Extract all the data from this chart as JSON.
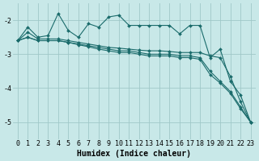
{
  "x": [
    0,
    1,
    2,
    3,
    4,
    5,
    6,
    7,
    8,
    9,
    10,
    11,
    12,
    13,
    14,
    15,
    16,
    17,
    18,
    19,
    20,
    21,
    22,
    23
  ],
  "line_top": [
    -2.6,
    -2.2,
    -2.5,
    -2.45,
    -1.8,
    -2.3,
    -2.5,
    -2.1,
    -2.2,
    -1.9,
    -1.85,
    -2.15,
    -2.15,
    -2.15,
    -2.15,
    -2.15,
    -2.4,
    -2.15,
    -2.15,
    -3.1,
    -2.85,
    -3.8,
    -4.2,
    -5.0
  ],
  "line_upper_band": [
    -2.6,
    -2.35,
    -2.55,
    -2.55,
    -2.55,
    -2.6,
    -2.65,
    -2.7,
    -2.75,
    -2.8,
    -2.82,
    -2.85,
    -2.88,
    -2.9,
    -2.9,
    -2.92,
    -2.95,
    -2.95,
    -2.95,
    -3.05,
    -3.1,
    -3.65,
    -4.4,
    -5.0
  ],
  "line_lower_band": [
    -2.6,
    -2.5,
    -2.6,
    -2.6,
    -2.6,
    -2.65,
    -2.7,
    -2.75,
    -2.8,
    -2.85,
    -2.9,
    -2.9,
    -2.95,
    -3.0,
    -3.0,
    -3.0,
    -3.05,
    -3.05,
    -3.1,
    -3.5,
    -3.8,
    -4.1,
    -4.55,
    -5.0
  ],
  "line_bottom": [
    -2.6,
    -2.5,
    -2.6,
    -2.6,
    -2.6,
    -2.65,
    -2.72,
    -2.78,
    -2.85,
    -2.9,
    -2.95,
    -2.95,
    -3.0,
    -3.05,
    -3.05,
    -3.05,
    -3.1,
    -3.1,
    -3.15,
    -3.6,
    -3.85,
    -4.15,
    -4.6,
    -5.0
  ],
  "bg_color": "#c8e8e8",
  "grid_color": "#a0c8c8",
  "line_color": "#1a6b6b",
  "marker": "D",
  "marker_size": 2.0,
  "linewidth": 0.8,
  "xlabel": "Humidex (Indice chaleur)",
  "xlabel_fontsize": 7,
  "tick_fontsize": 6,
  "xlim": [
    -0.5,
    23.5
  ],
  "ylim": [
    -5.5,
    -1.5
  ],
  "yticks": [
    -5,
    -4,
    -3,
    -2
  ],
  "xticks": [
    0,
    1,
    2,
    3,
    4,
    5,
    6,
    7,
    8,
    9,
    10,
    11,
    12,
    13,
    14,
    15,
    16,
    17,
    18,
    19,
    20,
    21,
    22,
    23
  ]
}
